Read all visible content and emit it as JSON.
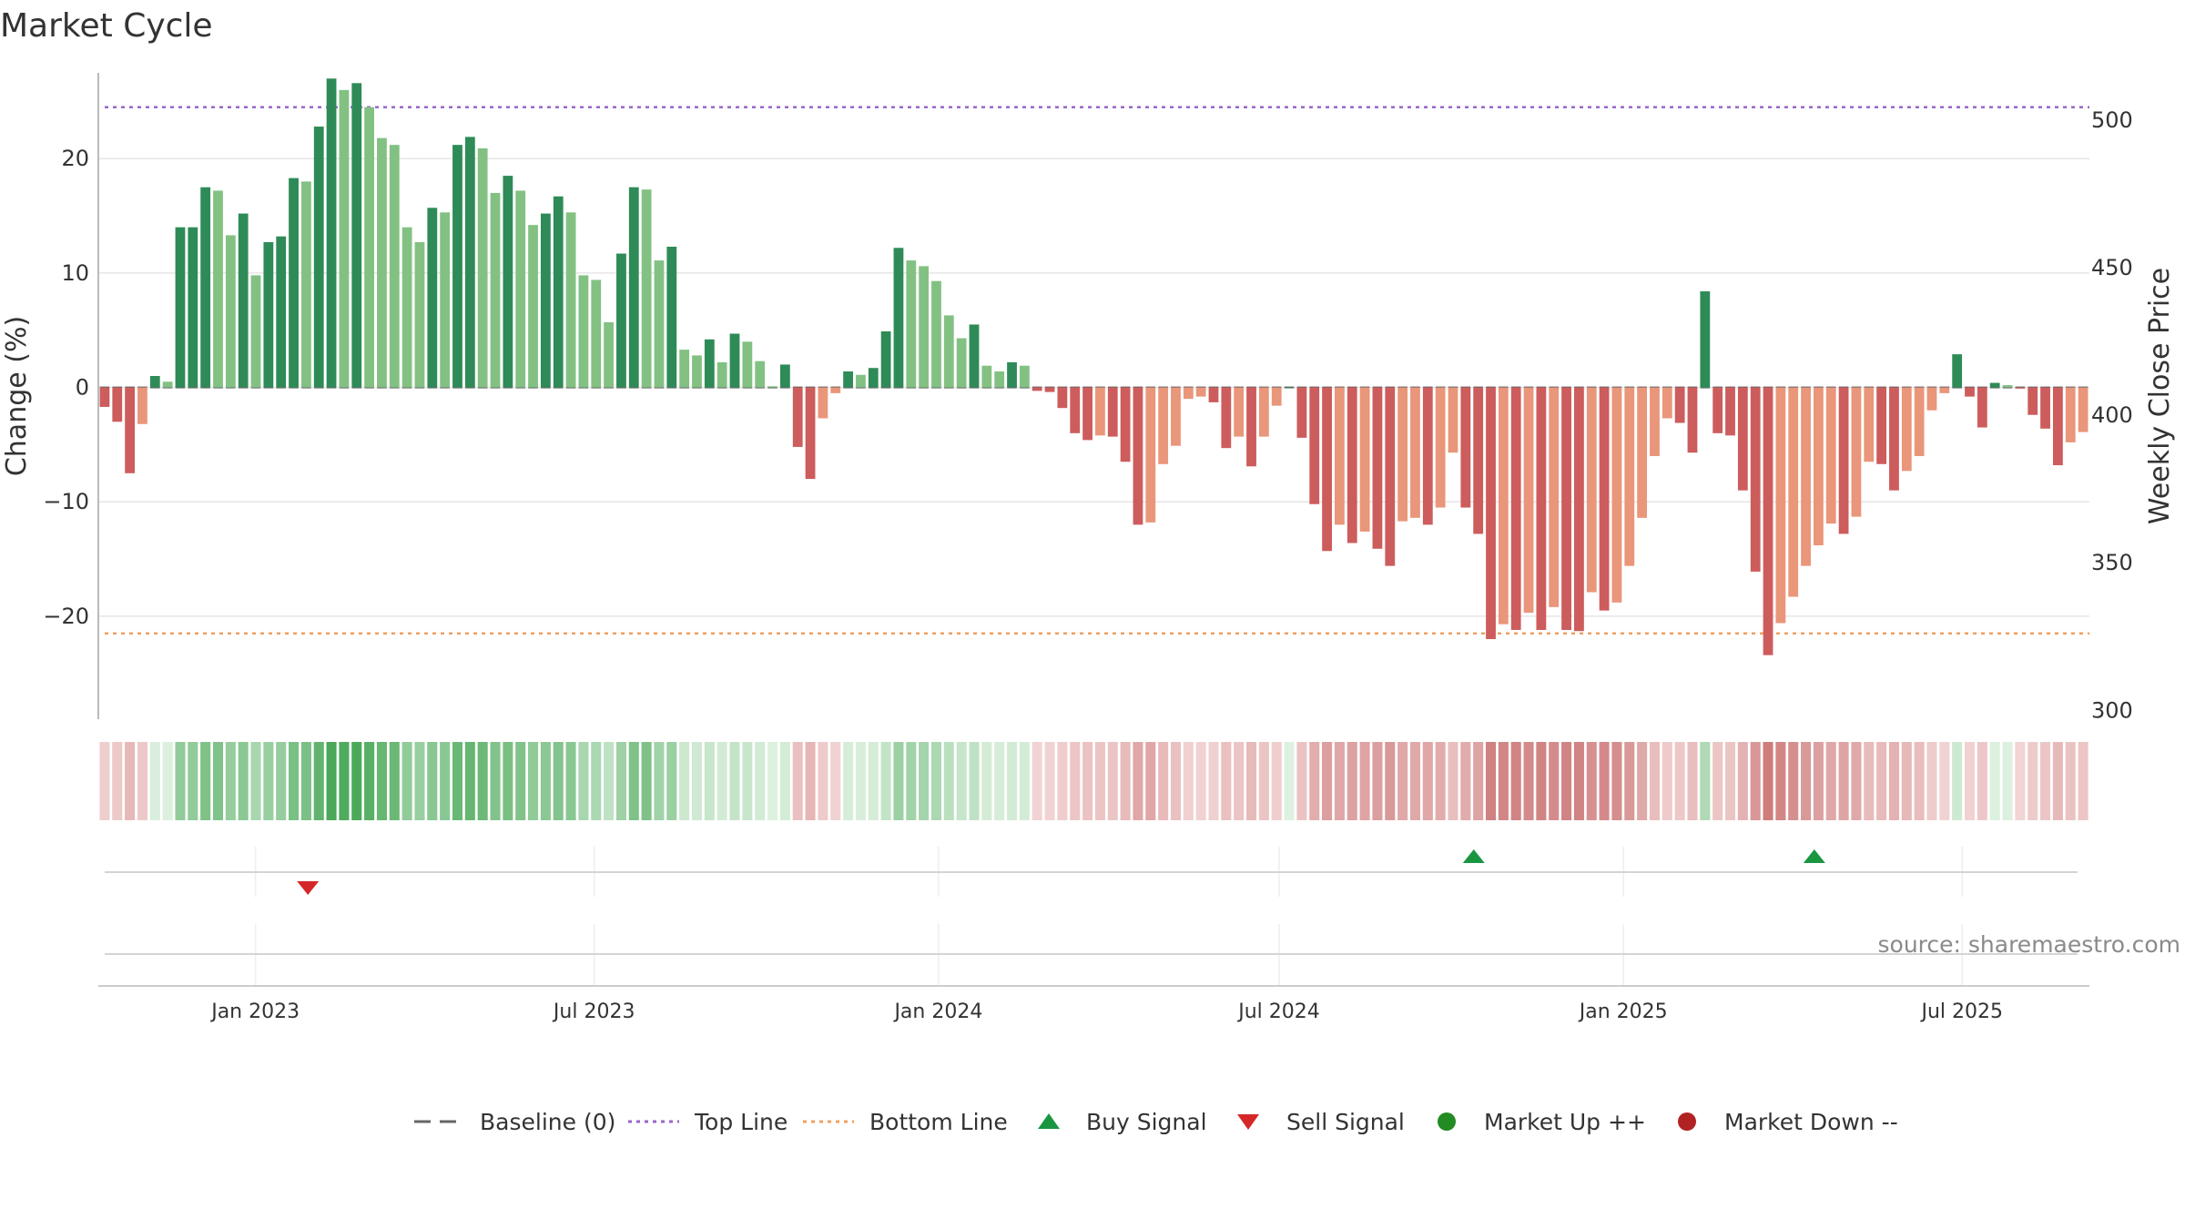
{
  "title": "Market Cycle",
  "source": "source: sharemaestro.com",
  "chart_data": {
    "type": "bar",
    "title": "Market Cycle",
    "ylabel": "Change (%)",
    "y2label": "Weekly Close Price",
    "ylim": [
      -29,
      27.5
    ],
    "y2lim": [
      297,
      516
    ],
    "yticks": [
      20,
      10,
      0,
      -10,
      -20
    ],
    "ytick_labels": [
      "20",
      "10",
      "0",
      "−10",
      "−20"
    ],
    "y2ticks": [
      500,
      450,
      400,
      350,
      300
    ],
    "y2tick_labels": [
      "500",
      "450",
      "400",
      "350",
      "300"
    ],
    "x_start": "2022-10-09",
    "x_end": "2025-09-07",
    "bar_interval_days": 7,
    "xticks": [
      "2023-01-01",
      "2023-07-01",
      "2024-01-01",
      "2024-07-01",
      "2025-01-01",
      "2025-07-01"
    ],
    "xtick_labels": [
      "Jan 2023",
      "Jul 2023",
      "Jan 2024",
      "Jul 2024",
      "Jan 2025",
      "Jul 2025"
    ],
    "top_line": 24.5,
    "bottom_line": -21.5,
    "grid": true,
    "legend_position": "bottom-center",
    "values": [
      -1.7,
      -3.0,
      -7.5,
      -3.2,
      1.0,
      0.5,
      14.0,
      14.0,
      17.5,
      17.2,
      13.3,
      15.2,
      9.8,
      12.7,
      13.2,
      18.3,
      18.0,
      22.8,
      27.0,
      26.0,
      26.6,
      24.5,
      21.8,
      21.2,
      14.0,
      12.7,
      15.7,
      15.3,
      21.2,
      21.9,
      20.9,
      17.0,
      18.5,
      17.2,
      14.2,
      15.2,
      16.7,
      15.3,
      9.8,
      9.4,
      5.7,
      11.7,
      17.5,
      17.3,
      11.1,
      12.3,
      3.3,
      2.8,
      4.2,
      2.2,
      4.7,
      4.0,
      2.3,
      0.1,
      2.0,
      -5.2,
      -8.0,
      -2.7,
      -0.5,
      1.4,
      1.1,
      1.7,
      4.9,
      12.2,
      11.1,
      10.6,
      9.3,
      6.3,
      4.3,
      5.5,
      1.9,
      1.4,
      2.2,
      1.9,
      -0.3,
      -0.4,
      -1.8,
      -4.0,
      -4.6,
      -4.2,
      -4.3,
      -6.5,
      -12.0,
      -11.8,
      -6.7,
      -5.1,
      -1.0,
      -0.8,
      -1.3,
      -5.3,
      -4.3,
      -6.9,
      -4.3,
      -1.6,
      0.0,
      -4.4,
      -10.2,
      -14.3,
      -12.0,
      -13.6,
      -12.6,
      -14.1,
      -15.6,
      -11.7,
      -11.4,
      -12.0,
      -10.5,
      -5.7,
      -10.5,
      -12.8,
      -22.0,
      -20.7,
      -21.2,
      -19.7,
      -21.2,
      -19.2,
      -21.2,
      -21.3,
      -17.9,
      -19.5,
      -18.8,
      -15.6,
      -11.4,
      -6.0,
      -2.7,
      -3.1,
      -5.7,
      8.4,
      -4.0,
      -4.2,
      -9.0,
      -16.1,
      -23.4,
      -20.6,
      -18.3,
      -15.6,
      -13.8,
      -11.9,
      -12.8,
      -11.3,
      -6.5,
      -6.7,
      -9.0,
      -7.3,
      -6.0,
      -2.0,
      -0.5,
      2.9,
      -0.8,
      -3.5,
      0.4,
      0.2,
      -0.1,
      -2.4,
      -3.6,
      -6.8,
      -4.8,
      -3.9
    ],
    "buy_signals": [
      "2024-10-13",
      "2025-04-13"
    ],
    "sell_signals": [
      "2023-01-29"
    ],
    "legend": [
      "Baseline (0)",
      "Top Line",
      "Bottom Line",
      "Buy Signal",
      "Sell Signal",
      "Market Up ++",
      "Market Down --"
    ],
    "colors": {
      "bar_up_dark": "#2e8b57",
      "bar_up_light": "#83c183",
      "bar_down_dark": "#cd5c5c",
      "bar_down_light": "#e9967a",
      "top_line": "#9966cc",
      "bottom_line": "#f0a060",
      "baseline": "#666666",
      "buy": "#1a9641",
      "sell": "#d62728",
      "market_up": "#228b22",
      "market_down": "#b22222"
    }
  }
}
